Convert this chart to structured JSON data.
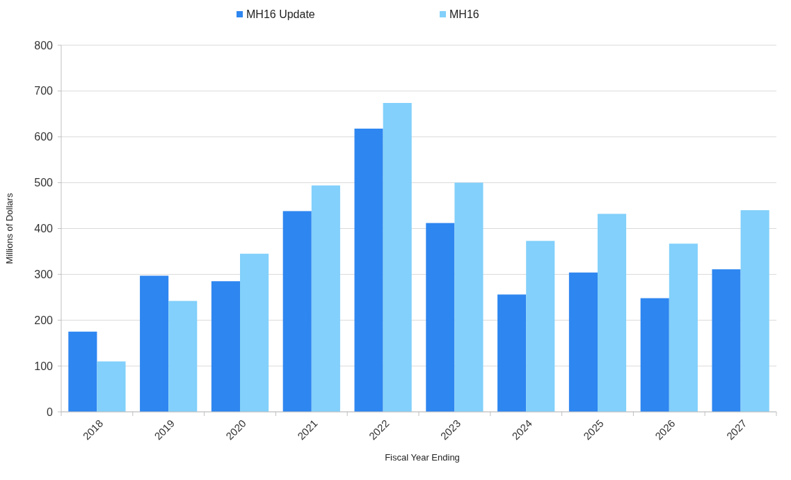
{
  "chart_data": {
    "type": "bar",
    "xlabel": "Fiscal Year Ending",
    "ylabel": "Millions of Dollars",
    "categories": [
      "2018",
      "2019",
      "2020",
      "2021",
      "2022",
      "2023",
      "2024",
      "2025",
      "2026",
      "2027"
    ],
    "series": [
      {
        "name": "MH16 Update",
        "color": "#2e86f0",
        "values": [
          175,
          297,
          285,
          438,
          618,
          412,
          256,
          304,
          248,
          311
        ]
      },
      {
        "name": "MH16",
        "color": "#82d0fb",
        "values": [
          110,
          242,
          345,
          494,
          674,
          500,
          373,
          432,
          367,
          440
        ]
      }
    ],
    "ylim": [
      0,
      800
    ],
    "yticks": [
      0,
      100,
      200,
      300,
      400,
      500,
      600,
      700,
      800
    ],
    "grid": "y",
    "legend": "top"
  }
}
